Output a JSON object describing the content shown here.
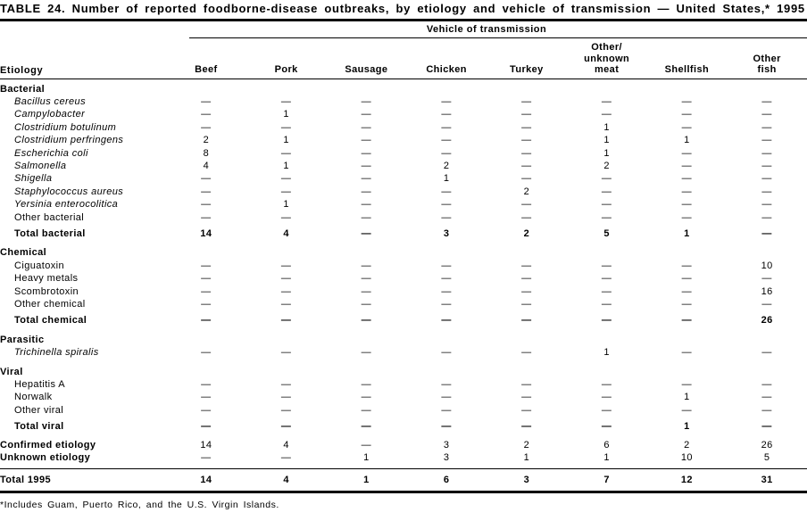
{
  "title": "TABLE 24. Number of reported foodborne-disease outbreaks, by etiology and vehicle of transmission — United States,* 1995",
  "footnote": "*Includes Guam, Puerto Rico, and the U.S. Virgin Islands.",
  "table": {
    "etiology_header": "Etiology",
    "group_header": "Vehicle of transmission",
    "columns": [
      [
        "Beef"
      ],
      [
        "Pork"
      ],
      [
        "Sausage"
      ],
      [
        "Chicken"
      ],
      [
        "Turkey"
      ],
      [
        "Other/",
        "unknown",
        "meat"
      ],
      [
        "Shellfish"
      ],
      [
        "Other",
        "fish"
      ]
    ],
    "rows": [
      {
        "type": "section",
        "label": "Bacterial"
      },
      {
        "type": "item",
        "italic": true,
        "label": "Bacillus cereus",
        "values": [
          "—",
          "—",
          "—",
          "—",
          "—",
          "—",
          "—",
          "—"
        ]
      },
      {
        "type": "item",
        "italic": true,
        "label": "Campylobacter",
        "values": [
          "—",
          "1",
          "—",
          "—",
          "—",
          "—",
          "—",
          "—"
        ]
      },
      {
        "type": "item",
        "italic": true,
        "label": "Clostridium botulinum",
        "values": [
          "—",
          "—",
          "—",
          "—",
          "—",
          "1",
          "—",
          "—"
        ]
      },
      {
        "type": "item",
        "italic": true,
        "label": "Clostridium perfringens",
        "values": [
          "2",
          "1",
          "—",
          "—",
          "—",
          "1",
          "1",
          "—"
        ]
      },
      {
        "type": "item",
        "italic": true,
        "label": "Escherichia coli",
        "values": [
          "8",
          "—",
          "—",
          "—",
          "—",
          "1",
          "—",
          "—"
        ]
      },
      {
        "type": "item",
        "italic": true,
        "label": "Salmonella",
        "values": [
          "4",
          "1",
          "—",
          "2",
          "—",
          "2",
          "—",
          "—"
        ]
      },
      {
        "type": "item",
        "italic": true,
        "label": "Shigella",
        "values": [
          "—",
          "—",
          "—",
          "1",
          "—",
          "—",
          "—",
          "—"
        ]
      },
      {
        "type": "item",
        "italic": true,
        "label": "Staphylococcus aureus",
        "values": [
          "—",
          "—",
          "—",
          "—",
          "2",
          "—",
          "—",
          "—"
        ]
      },
      {
        "type": "item",
        "italic": true,
        "label": "Yersinia enterocolitica",
        "values": [
          "—",
          "1",
          "—",
          "—",
          "—",
          "—",
          "—",
          "—"
        ]
      },
      {
        "type": "item",
        "italic": false,
        "label": "Other bacterial",
        "values": [
          "—",
          "—",
          "—",
          "—",
          "—",
          "—",
          "—",
          "—"
        ]
      },
      {
        "type": "total",
        "label": "Total bacterial",
        "values": [
          "14",
          "4",
          "—",
          "3",
          "2",
          "5",
          "1",
          "—"
        ]
      },
      {
        "type": "section",
        "label": "Chemical"
      },
      {
        "type": "item",
        "italic": false,
        "label": "Ciguatoxin",
        "values": [
          "—",
          "—",
          "—",
          "—",
          "—",
          "—",
          "—",
          "10"
        ]
      },
      {
        "type": "item",
        "italic": false,
        "label": "Heavy metals",
        "values": [
          "—",
          "—",
          "—",
          "—",
          "—",
          "—",
          "—",
          "—"
        ]
      },
      {
        "type": "item",
        "italic": false,
        "label": "Scombrotoxin",
        "values": [
          "—",
          "—",
          "—",
          "—",
          "—",
          "—",
          "—",
          "16"
        ]
      },
      {
        "type": "item",
        "italic": false,
        "label": "Other chemical",
        "values": [
          "—",
          "—",
          "—",
          "—",
          "—",
          "—",
          "—",
          "—"
        ]
      },
      {
        "type": "total",
        "label": "Total chemical",
        "values": [
          "—",
          "—",
          "—",
          "—",
          "—",
          "—",
          "—",
          "26"
        ]
      },
      {
        "type": "section",
        "label": "Parasitic"
      },
      {
        "type": "item",
        "italic": true,
        "label": "Trichinella spiralis",
        "values": [
          "—",
          "—",
          "—",
          "—",
          "—",
          "1",
          "—",
          "—"
        ]
      },
      {
        "type": "section",
        "label": "Viral"
      },
      {
        "type": "item",
        "italic": false,
        "label": "Hepatitis A",
        "values": [
          "—",
          "—",
          "—",
          "—",
          "—",
          "—",
          "—",
          "—"
        ]
      },
      {
        "type": "item",
        "italic": false,
        "label": "Norwalk",
        "values": [
          "—",
          "—",
          "—",
          "—",
          "—",
          "—",
          "1",
          "—"
        ]
      },
      {
        "type": "item",
        "italic": false,
        "label": "Other viral",
        "values": [
          "—",
          "—",
          "—",
          "—",
          "—",
          "—",
          "—",
          "—"
        ]
      },
      {
        "type": "total",
        "label": "Total viral",
        "values": [
          "—",
          "—",
          "—",
          "—",
          "—",
          "—",
          "1",
          "—"
        ]
      },
      {
        "type": "summary",
        "label": "Confirmed etiology",
        "values": [
          "14",
          "4",
          "—",
          "3",
          "2",
          "6",
          "2",
          "26"
        ]
      },
      {
        "type": "summary",
        "label": "Unknown etiology",
        "values": [
          "—",
          "—",
          "1",
          "3",
          "1",
          "1",
          "10",
          "5"
        ]
      },
      {
        "type": "grand",
        "label": "Total 1995",
        "values": [
          "14",
          "4",
          "1",
          "6",
          "3",
          "7",
          "12",
          "31"
        ]
      }
    ]
  }
}
